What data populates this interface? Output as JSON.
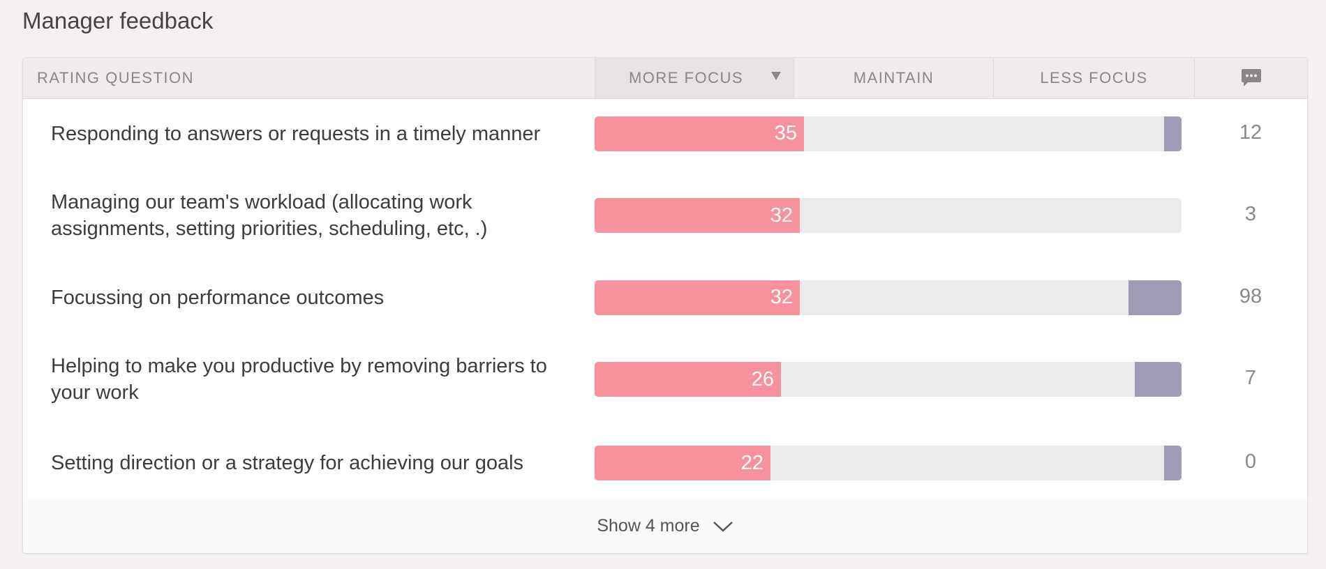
{
  "page": {
    "title": "Manager feedback"
  },
  "table": {
    "headers": {
      "question": "RATING QUESTION",
      "more_focus": "MORE FOCUS",
      "maintain": "MAINTAIN",
      "less_focus": "LESS FOCUS",
      "comments_icon": "comment-icon"
    },
    "sort": {
      "column": "more_focus",
      "direction": "desc"
    },
    "rows": [
      {
        "question": "Responding to answers or requests in a timely manner",
        "more_focus": "35",
        "more_focus_fraction": 0.357,
        "less_focus_fraction": 0.03,
        "comments": "12"
      },
      {
        "question": "Managing our team's workload (allocating work assignments, setting priorities, scheduling, etc, .)",
        "more_focus": "32",
        "more_focus_fraction": 0.349,
        "less_focus_fraction": 0.0,
        "comments": "3"
      },
      {
        "question": "Focussing on performance outcomes",
        "more_focus": "32",
        "more_focus_fraction": 0.349,
        "less_focus_fraction": 0.09,
        "comments": "98"
      },
      {
        "question": "Helping to make you productive by removing barriers to your work",
        "more_focus": "26",
        "more_focus_fraction": 0.317,
        "less_focus_fraction": 0.08,
        "comments": "7"
      },
      {
        "question": "Setting direction or a strategy for achieving our goals",
        "more_focus": "22",
        "more_focus_fraction": 0.3,
        "less_focus_fraction": 0.03,
        "comments": "0"
      }
    ]
  },
  "footer": {
    "show_more_label": "Show 4 more",
    "icon": "chevron-down-icon"
  },
  "colors": {
    "more_focus": "#f7929c",
    "maintain": "#ebebeb",
    "less_focus": "#9e9bb5"
  }
}
